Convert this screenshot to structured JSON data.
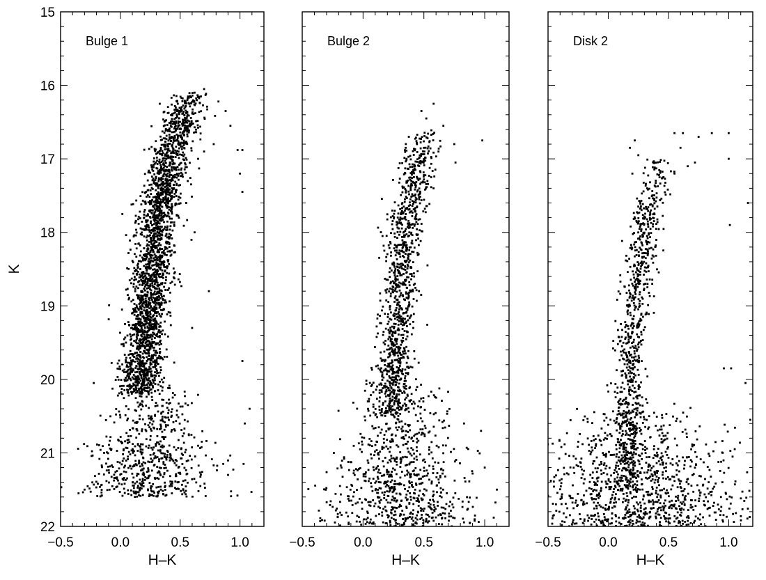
{
  "chart_data": {
    "type": "scatter",
    "shared_y": {
      "label": "K",
      "range": [
        22,
        15
      ],
      "ticks": [
        15,
        16,
        17,
        18,
        19,
        20,
        21,
        22
      ],
      "inverted": true
    },
    "panels": [
      {
        "title": "Bulge 1",
        "xlabel": "H–K",
        "xlim": [
          -0.5,
          1.2
        ],
        "xticks": [
          -0.5,
          0.0,
          0.5,
          1.0
        ],
        "xtick_labels": [
          "−0.5",
          "0.0",
          "0.5",
          "1.0"
        ],
        "color": "#000000",
        "distribution": {
          "branch": [
            [
              20.2,
              0.16
            ],
            [
              19.5,
              0.2
            ],
            [
              19.0,
              0.24
            ],
            [
              18.5,
              0.27
            ],
            [
              18.0,
              0.3
            ],
            [
              17.5,
              0.35
            ],
            [
              17.0,
              0.42
            ],
            [
              16.5,
              0.5
            ],
            [
              16.1,
              0.58
            ]
          ],
          "branch_spread": 0.08,
          "branch_count": 2400,
          "faint_range": [
            19.6,
            21.6
          ],
          "faint_center": 0.25,
          "faint_spread": 0.22,
          "faint_count": 650,
          "outliers": [
            [
              0.62,
              16.1
            ],
            [
              0.7,
              16.05
            ],
            [
              0.82,
              16.22
            ],
            [
              0.88,
              16.35
            ],
            [
              0.92,
              16.55
            ],
            [
              0.78,
              16.8
            ],
            [
              0.98,
              16.88
            ],
            [
              1.02,
              16.88
            ],
            [
              1.0,
              17.2
            ],
            [
              1.02,
              17.45
            ],
            [
              0.7,
              16.9
            ],
            [
              0.65,
              17.0
            ],
            [
              0.74,
              18.8
            ],
            [
              1.02,
              19.75
            ],
            [
              1.08,
              20.4
            ],
            [
              1.04,
              20.6
            ],
            [
              1.03,
              21.15
            ],
            [
              0.9,
              21.3
            ],
            [
              0.86,
              21.15
            ],
            [
              -0.35,
              21.55
            ],
            [
              -0.3,
              21.5
            ],
            [
              0.62,
              18.0
            ],
            [
              0.6,
              19.3
            ]
          ]
        }
      },
      {
        "title": "Bulge 2",
        "xlabel": "H–K",
        "xlim": [
          -0.5,
          1.2
        ],
        "xticks": [
          -0.5,
          0.0,
          0.5,
          1.0
        ],
        "xtick_labels": [
          "−0.5",
          "0.0",
          "0.5",
          "1.0"
        ],
        "color": "#000000",
        "distribution": {
          "branch": [
            [
              20.5,
              0.22
            ],
            [
              20.0,
              0.24
            ],
            [
              19.5,
              0.26
            ],
            [
              19.0,
              0.29
            ],
            [
              18.5,
              0.31
            ],
            [
              18.0,
              0.34
            ],
            [
              17.5,
              0.4
            ],
            [
              17.0,
              0.45
            ],
            [
              16.6,
              0.5
            ]
          ],
          "branch_spread": 0.07,
          "branch_count": 1100,
          "faint_range": [
            19.8,
            22.0
          ],
          "faint_center": 0.3,
          "faint_spread": 0.25,
          "faint_count": 800,
          "outliers": [
            [
              0.58,
              16.25
            ],
            [
              0.48,
              16.35
            ],
            [
              0.52,
              16.45
            ],
            [
              0.66,
              16.55
            ],
            [
              0.75,
              16.8
            ],
            [
              0.98,
              16.75
            ],
            [
              0.62,
              16.9
            ],
            [
              0.76,
              17.05
            ],
            [
              0.16,
              18.05
            ],
            [
              0.5,
              16.85
            ],
            [
              0.35,
              16.85
            ],
            [
              0.83,
              20.6
            ],
            [
              0.97,
              20.7
            ],
            [
              1.0,
              21.2
            ],
            [
              1.1,
              21.5
            ]
          ]
        }
      },
      {
        "title": "Disk 2",
        "xlabel": "H–K",
        "xlim": [
          -0.5,
          1.2
        ],
        "xticks": [
          -0.5,
          0.0,
          0.5,
          1.0
        ],
        "xtick_labels": [
          "−0.5",
          "0.0",
          "0.5",
          "1.0"
        ],
        "color": "#000000",
        "distribution": {
          "branch": [
            [
              21.5,
              0.15
            ],
            [
              21.0,
              0.16
            ],
            [
              20.5,
              0.17
            ],
            [
              20.0,
              0.18
            ],
            [
              19.5,
              0.2
            ],
            [
              19.0,
              0.22
            ],
            [
              18.5,
              0.26
            ],
            [
              18.0,
              0.3
            ],
            [
              17.5,
              0.36
            ],
            [
              17.0,
              0.42
            ]
          ],
          "branch_spread": 0.06,
          "branch_count": 850,
          "faint_range": [
            20.2,
            22.0
          ],
          "faint_center": 0.25,
          "faint_spread": 0.4,
          "faint_count": 1000,
          "outliers": [
            [
              0.55,
              16.65
            ],
            [
              0.62,
              16.65
            ],
            [
              0.75,
              16.7
            ],
            [
              0.86,
              16.65
            ],
            [
              1.0,
              16.65
            ],
            [
              0.6,
              16.85
            ],
            [
              0.72,
              17.05
            ],
            [
              0.66,
              17.1
            ],
            [
              0.55,
              17.2
            ],
            [
              1.0,
              17.0
            ],
            [
              1.16,
              17.6
            ],
            [
              1.01,
              17.9
            ],
            [
              0.2,
              17.2
            ],
            [
              0.18,
              16.85
            ],
            [
              0.22,
              16.75
            ],
            [
              0.25,
              16.95
            ],
            [
              0.96,
              19.85
            ],
            [
              1.02,
              19.85
            ],
            [
              1.14,
              20.05
            ],
            [
              1.18,
              20.55
            ],
            [
              0.95,
              21.0
            ],
            [
              1.05,
              20.95
            ]
          ]
        }
      }
    ]
  }
}
